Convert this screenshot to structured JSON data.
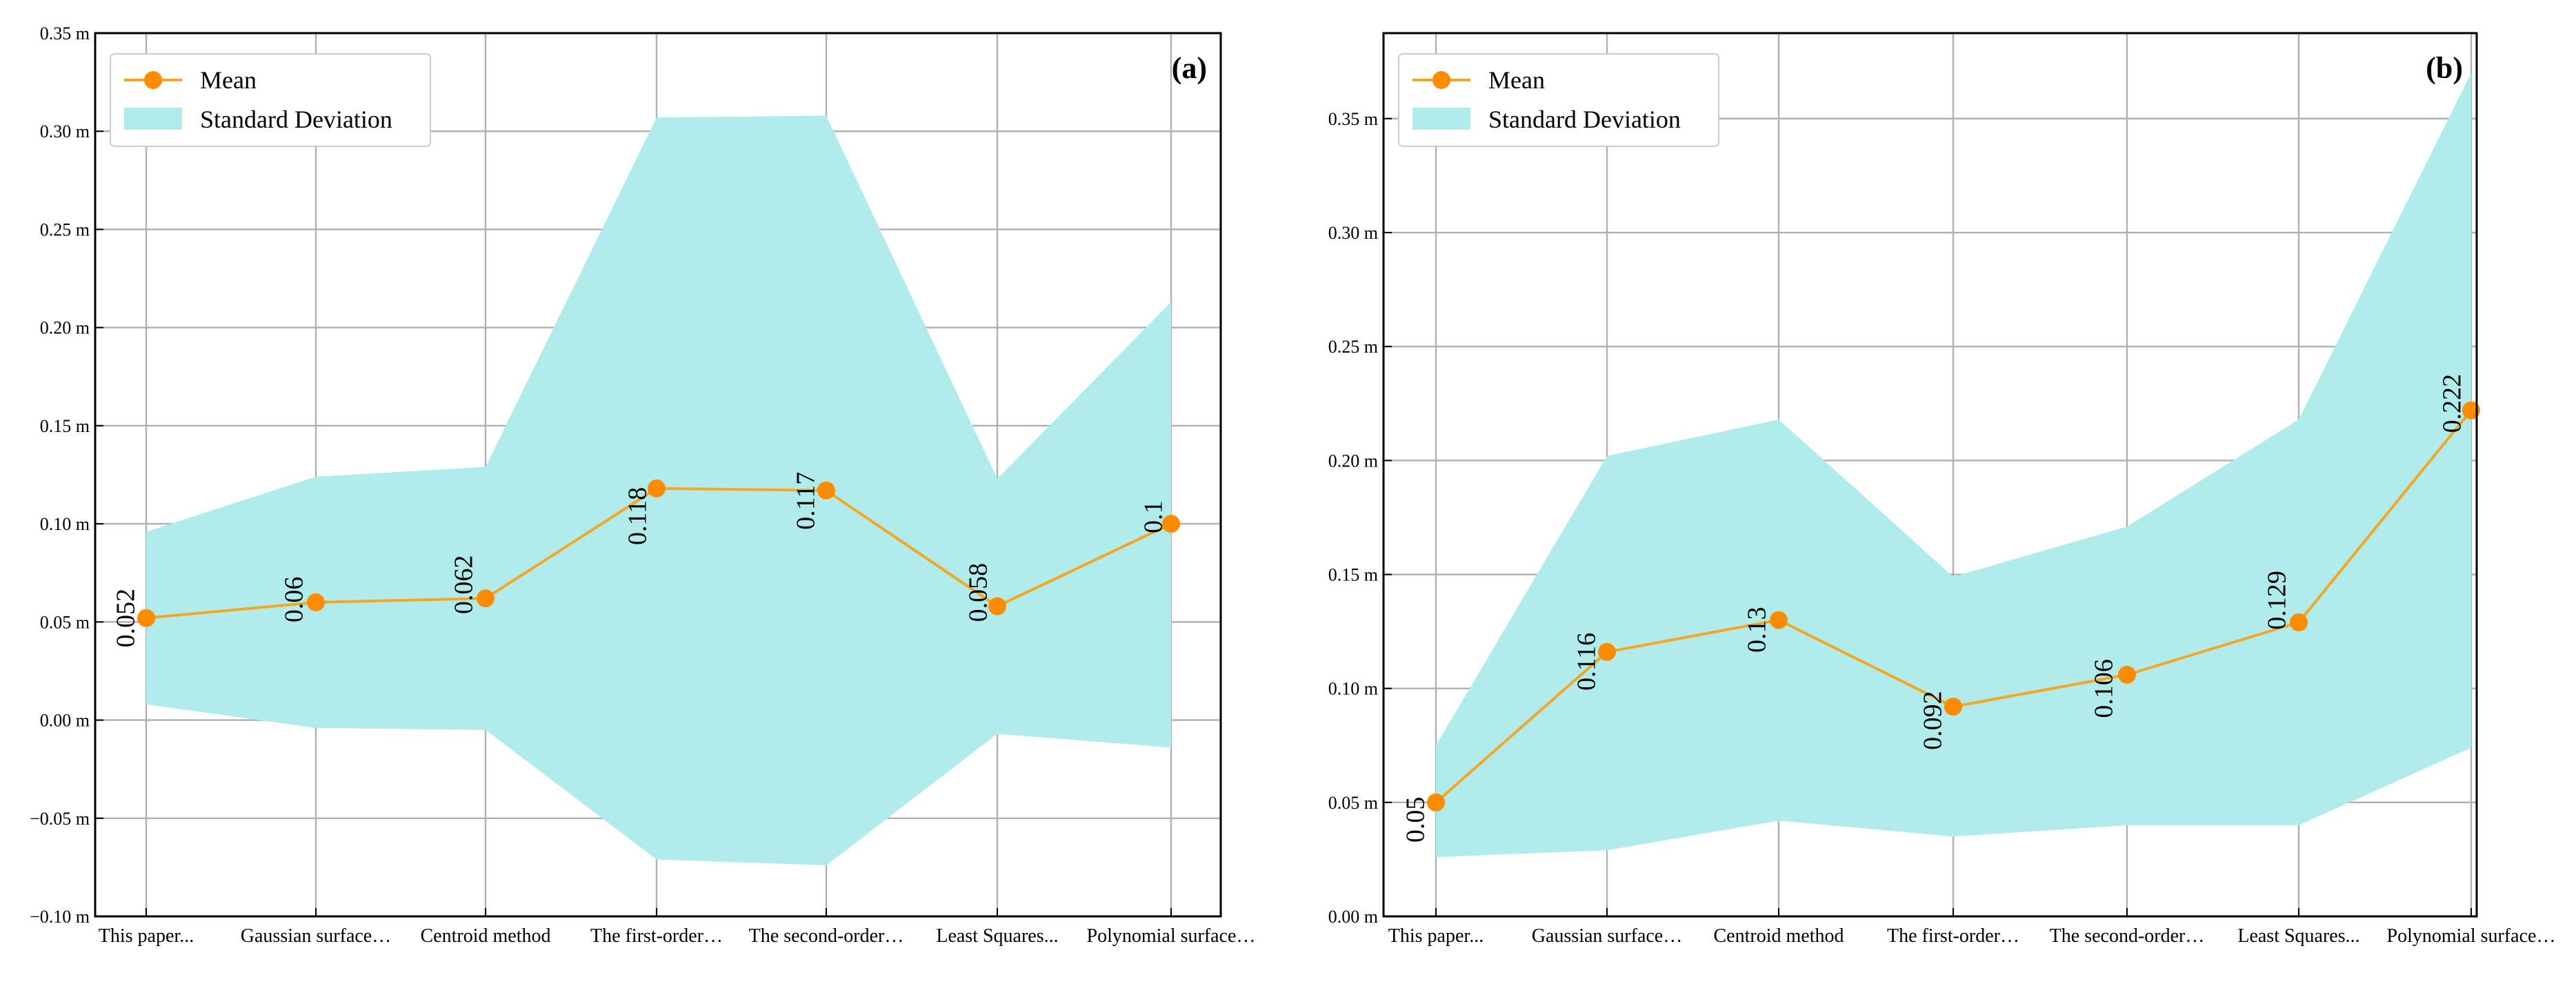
{
  "colors": {
    "mean": "#f5a623",
    "marker": "#ff8c00",
    "band": "#b0ecec"
  },
  "chart_data": [
    {
      "type": "line",
      "panel_label": "(a)",
      "categories": [
        "This paper...",
        "Gaussian surface…",
        "Centroid method",
        "The first-order…",
        "The second-order…",
        "Least Squares...",
        "Polynomial surface…"
      ],
      "series": [
        {
          "name": "Mean",
          "values": [
            0.052,
            0.06,
            0.062,
            0.118,
            0.117,
            0.058,
            0.1
          ]
        }
      ],
      "std_band": {
        "name": "Standard Deviation",
        "upper": [
          0.096,
          0.124,
          0.129,
          0.307,
          0.308,
          0.123,
          0.213
        ],
        "lower": [
          0.008,
          -0.004,
          -0.005,
          -0.071,
          -0.074,
          -0.007,
          -0.014
        ]
      },
      "data_labels": [
        "0.052",
        "0.06",
        "0.062",
        "0.118",
        "0.117",
        "0.058",
        "0.1"
      ],
      "yticks": [
        -0.1,
        -0.05,
        0.0,
        0.05,
        0.1,
        0.15,
        0.2,
        0.25,
        0.3,
        0.35
      ],
      "ytick_labels": [
        "−0.10 m",
        "−0.05 m",
        "0.00 m",
        "0.05 m",
        "0.10 m",
        "0.15 m",
        "0.20 m",
        "0.25 m",
        "0.30 m",
        "0.35 m"
      ],
      "ylim": [
        -0.1,
        0.35
      ],
      "legend": {
        "placement": "top-left",
        "entries": [
          "Mean",
          "Standard Deviation"
        ]
      },
      "grid": true
    },
    {
      "type": "line",
      "panel_label": "(b)",
      "categories": [
        "This paper...",
        "Gaussian surface…",
        "Centroid method",
        "The first-order…",
        "The second-order…",
        "Least Squares...",
        "Polynomial surface…"
      ],
      "series": [
        {
          "name": "Mean",
          "values": [
            0.05,
            0.116,
            0.13,
            0.092,
            0.106,
            0.129,
            0.222
          ]
        }
      ],
      "std_band": {
        "name": "Standard Deviation",
        "upper": [
          0.075,
          0.202,
          0.218,
          0.149,
          0.171,
          0.218,
          0.37
        ],
        "lower": [
          0.026,
          0.029,
          0.042,
          0.035,
          0.04,
          0.04,
          0.074
        ]
      },
      "data_labels": [
        "0.05",
        "0.116",
        "0.13",
        "0.092",
        "0.106",
        "0.129",
        "0.222"
      ],
      "yticks": [
        0.0,
        0.05,
        0.1,
        0.15,
        0.2,
        0.25,
        0.3,
        0.35
      ],
      "ytick_labels": [
        "0.00 m",
        "0.05 m",
        "0.10 m",
        "0.15 m",
        "0.20 m",
        "0.25 m",
        "0.30 m",
        "0.35 m"
      ],
      "ylim": [
        0.0,
        0.3875
      ],
      "legend": {
        "placement": "top-left",
        "entries": [
          "Mean",
          "Standard Deviation"
        ]
      },
      "grid": true
    }
  ]
}
